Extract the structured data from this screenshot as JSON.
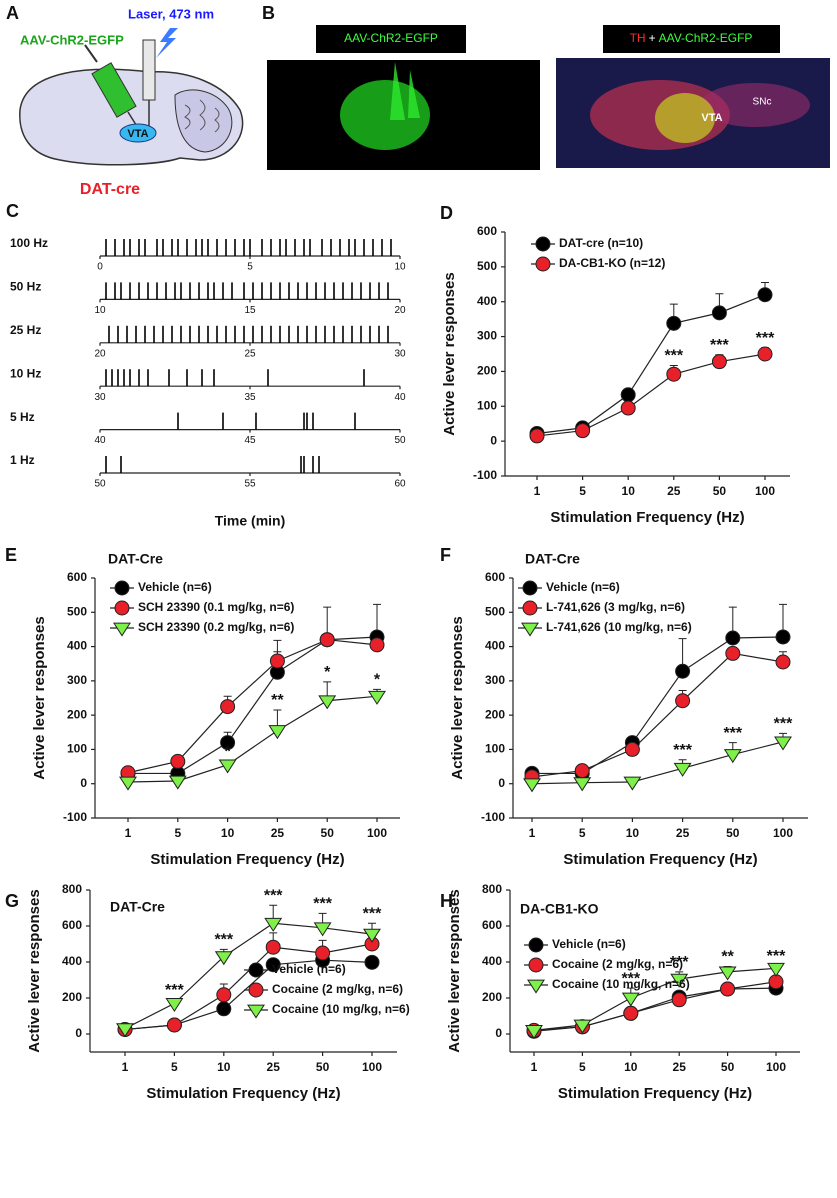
{
  "panels": {
    "A": {
      "label": "A",
      "laser": "Laser, 473 nm",
      "virus": "AAV-ChR2-EGFP",
      "region": "VTA",
      "mouse": "DAT-cre"
    },
    "B": {
      "label": "B",
      "left_caption": "AAV-ChR2-EGFP",
      "right_caption_th": "TH",
      "right_caption_plus": "+",
      "right_caption_virus": "AAV-ChR2-EGFP",
      "region": "VTA",
      "region2": "SNc"
    }
  },
  "chart_data": [
    {
      "type": "raster",
      "panel": "C",
      "xlabel": "Time (min)",
      "rows": [
        {
          "name": "100 Hz",
          "xlim": [
            0,
            10
          ],
          "xticks": [
            0,
            5,
            10
          ],
          "events": [
            0.2,
            0.5,
            0.8,
            1.0,
            1.3,
            1.5,
            1.9,
            2.1,
            2.4,
            2.6,
            2.9,
            3.2,
            3.4,
            3.6,
            3.9,
            4.2,
            4.5,
            4.8,
            5.0,
            5.4,
            5.7,
            6.0,
            6.2,
            6.5,
            6.8,
            7.0,
            7.4,
            7.7,
            8.0,
            8.3,
            8.5,
            8.8,
            9.1,
            9.4,
            9.7
          ]
        },
        {
          "name": "50 Hz",
          "xlim": [
            10,
            20
          ],
          "xticks": [
            10,
            15,
            20
          ],
          "events": [
            10.2,
            10.5,
            10.7,
            11.0,
            11.3,
            11.6,
            11.9,
            12.2,
            12.5,
            12.7,
            13.0,
            13.3,
            13.6,
            13.8,
            14.1,
            14.4,
            14.8,
            15.1,
            15.4,
            15.7,
            16.0,
            16.3,
            16.6,
            16.9,
            17.2,
            17.5,
            17.8,
            18.1,
            18.4,
            18.7,
            19.0,
            19.3,
            19.6
          ]
        },
        {
          "name": "25 Hz",
          "xlim": [
            20,
            30
          ],
          "xticks": [
            20,
            25,
            30
          ],
          "events": [
            20.3,
            20.6,
            20.9,
            21.2,
            21.5,
            21.8,
            22.1,
            22.4,
            22.7,
            23.0,
            23.3,
            23.6,
            23.9,
            24.2,
            24.5,
            24.8,
            25.1,
            25.4,
            25.7,
            26.0,
            26.3,
            26.6,
            26.9,
            27.2,
            27.5,
            27.8,
            28.1,
            28.4,
            28.7,
            29.0,
            29.3,
            29.6
          ]
        },
        {
          "name": "10 Hz",
          "xlim": [
            30,
            40
          ],
          "xticks": [
            30,
            35,
            40
          ],
          "events": [
            30.2,
            30.4,
            30.6,
            30.8,
            31.0,
            31.3,
            31.6,
            32.3,
            32.9,
            33.4,
            33.8,
            35.6,
            38.8
          ]
        },
        {
          "name": "5 Hz",
          "xlim": [
            40,
            50
          ],
          "xticks": [
            40,
            45,
            50
          ],
          "events": [
            42.6,
            44.1,
            45.2,
            46.8,
            46.9,
            47.1,
            48.5
          ]
        },
        {
          "name": "1 Hz",
          "xlim": [
            50,
            60
          ],
          "xticks": [
            50,
            55,
            60
          ],
          "events": [
            50.2,
            50.7,
            56.7,
            56.8,
            57.1,
            57.3
          ]
        }
      ]
    },
    {
      "type": "line",
      "panel": "D",
      "xlabel": "Stimulation Frequency (Hz)",
      "ylabel": "Active lever responses",
      "categories": [
        "1",
        "5",
        "10",
        "25",
        "50",
        "100"
      ],
      "ylim": [
        -100,
        600
      ],
      "yticks": [
        -100,
        0,
        100,
        200,
        300,
        400,
        500,
        600
      ],
      "legend": "upper left",
      "series": [
        {
          "name": "DAT-cre (n=10)",
          "color": "#000000",
          "marker": "circle",
          "values": [
            22,
            38,
            133,
            338,
            368,
            420
          ],
          "errors": [
            5,
            5,
            10,
            55,
            55,
            35
          ]
        },
        {
          "name": "DA-CB1-KO (n=12)",
          "color": "#e8202a",
          "marker": "circle",
          "values": [
            15,
            30,
            95,
            192,
            228,
            250
          ],
          "errors": [
            3,
            5,
            8,
            25,
            20,
            18
          ]
        }
      ],
      "significance": [
        null,
        null,
        null,
        "***",
        "***",
        "***"
      ]
    },
    {
      "type": "line",
      "panel": "E",
      "title": "DAT-Cre",
      "xlabel": "Stimulation Frequency (Hz)",
      "ylabel": "Active lever responses",
      "categories": [
        "1",
        "5",
        "10",
        "25",
        "50",
        "100"
      ],
      "ylim": [
        -100,
        600
      ],
      "yticks": [
        -100,
        0,
        100,
        200,
        300,
        400,
        500,
        600
      ],
      "legend": "upper left",
      "series": [
        {
          "name": "Vehicle (n=6)",
          "color": "#000000",
          "marker": "circle",
          "values": [
            30,
            30,
            120,
            325,
            420,
            428
          ],
          "errors": [
            5,
            5,
            30,
            60,
            95,
            95
          ]
        },
        {
          "name": "SCH 23390 (0.1 mg/kg, n=6)",
          "color": "#e8202a",
          "marker": "circle",
          "values": [
            32,
            65,
            225,
            358,
            420,
            405
          ],
          "errors": [
            5,
            5,
            30,
            60,
            10,
            20
          ]
        },
        {
          "name": "SCH 23390 (0.2 mg/kg, n=6)",
          "color": "#7ef04a",
          "marker": "triangle",
          "values": [
            5,
            8,
            55,
            155,
            242,
            255
          ],
          "errors": [
            3,
            3,
            10,
            60,
            55,
            20
          ]
        }
      ],
      "significance": [
        null,
        null,
        "*",
        "**",
        "*",
        "*"
      ]
    },
    {
      "type": "line",
      "panel": "F",
      "title": "DAT-Cre",
      "xlabel": "Stimulation Frequency (Hz)",
      "ylabel": "Active lever responses",
      "categories": [
        "1",
        "5",
        "10",
        "25",
        "50",
        "100"
      ],
      "ylim": [
        -100,
        600
      ],
      "yticks": [
        -100,
        0,
        100,
        200,
        300,
        400,
        500,
        600
      ],
      "legend": "upper left",
      "series": [
        {
          "name": "Vehicle (n=6)",
          "color": "#000000",
          "marker": "circle",
          "values": [
            30,
            30,
            120,
            328,
            425,
            428
          ],
          "errors": [
            5,
            5,
            10,
            95,
            90,
            95
          ]
        },
        {
          "name": "L-741,626 (3 mg/kg, n=6)",
          "color": "#e8202a",
          "marker": "circle",
          "values": [
            20,
            38,
            100,
            242,
            380,
            355
          ],
          "errors": [
            5,
            5,
            10,
            30,
            10,
            30
          ]
        },
        {
          "name": "L-741,626 (10 mg/kg, n=6)",
          "color": "#7ef04a",
          "marker": "triangle",
          "values": [
            0,
            3,
            5,
            45,
            85,
            122
          ],
          "errors": [
            2,
            2,
            2,
            25,
            35,
            25
          ]
        }
      ],
      "significance": [
        null,
        null,
        null,
        "***",
        "***",
        "***"
      ]
    },
    {
      "type": "line",
      "panel": "G",
      "title": "DAT-Cre",
      "xlabel": "Stimulation Frequency (Hz)",
      "ylabel": "Active lever responses",
      "categories": [
        "1",
        "5",
        "10",
        "25",
        "50",
        "100"
      ],
      "ylim": [
        -100,
        800
      ],
      "yticks": [
        0,
        200,
        400,
        600,
        800
      ],
      "legend": "lower right",
      "series": [
        {
          "name": "Vehicle (n=6)",
          "color": "#000000",
          "marker": "circle",
          "values": [
            25,
            50,
            140,
            385,
            410,
            398
          ],
          "errors": [
            5,
            5,
            10,
            20,
            30,
            20
          ]
        },
        {
          "name": "Cocaine (2 mg/kg, n=6)",
          "color": "#e8202a",
          "marker": "circle",
          "values": [
            25,
            50,
            218,
            482,
            450,
            500
          ],
          "errors": [
            5,
            5,
            60,
            80,
            70,
            60
          ]
        },
        {
          "name": "Cocaine (10 mg/kg, n=6)",
          "color": "#7ef04a",
          "marker": "triangle",
          "values": [
            30,
            170,
            430,
            615,
            590,
            555
          ],
          "errors": [
            5,
            20,
            40,
            100,
            80,
            60
          ]
        }
      ],
      "significance": [
        null,
        "***",
        "***",
        "***",
        "***",
        "***"
      ]
    },
    {
      "type": "line",
      "panel": "H",
      "title": "DA-CB1-KO",
      "xlabel": "Stimulation Frequency (Hz)",
      "ylabel": "Active lever responses",
      "categories": [
        "1",
        "5",
        "10",
        "25",
        "50",
        "100"
      ],
      "ylim": [
        -100,
        800
      ],
      "yticks": [
        0,
        200,
        400,
        600,
        800
      ],
      "legend": "upper left",
      "series": [
        {
          "name": "Vehicle (n=6)",
          "color": "#000000",
          "marker": "circle",
          "values": [
            15,
            40,
            115,
            205,
            250,
            255
          ],
          "errors": [
            3,
            5,
            10,
            30,
            20,
            15
          ]
        },
        {
          "name": "Cocaine (2 mg/kg, n=6)",
          "color": "#e8202a",
          "marker": "circle",
          "values": [
            20,
            40,
            115,
            190,
            250,
            290
          ],
          "errors": [
            3,
            5,
            10,
            20,
            25,
            20
          ]
        },
        {
          "name": "Cocaine (10 mg/kg, n=6)",
          "color": "#7ef04a",
          "marker": "triangle",
          "values": [
            20,
            50,
            200,
            305,
            345,
            365
          ],
          "errors": [
            5,
            5,
            55,
            40,
            30,
            15
          ]
        }
      ],
      "significance": [
        null,
        null,
        "***",
        "***",
        "**",
        "***"
      ]
    }
  ]
}
